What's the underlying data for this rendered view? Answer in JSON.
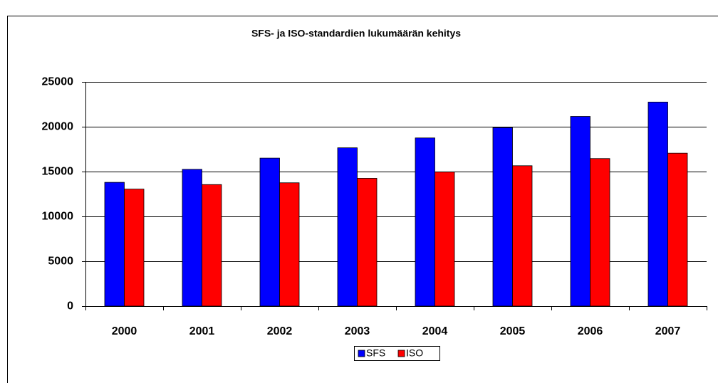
{
  "chart_data": {
    "type": "bar",
    "title": "SFS- ja ISO-standardien lukumäärän kehitys",
    "categories": [
      "2000",
      "2001",
      "2002",
      "2003",
      "2004",
      "2005",
      "2006",
      "2007"
    ],
    "series": [
      {
        "name": "SFS",
        "color": "#0000ff",
        "values": [
          13800,
          15250,
          16500,
          17650,
          18750,
          19900,
          21150,
          22750
        ]
      },
      {
        "name": "ISO",
        "color": "#ff0000",
        "values": [
          13050,
          13550,
          13750,
          14250,
          14950,
          15650,
          16450,
          17050
        ]
      }
    ],
    "ylim": [
      0,
      25000
    ],
    "yticks": [
      0,
      5000,
      10000,
      15000,
      20000,
      25000
    ],
    "grid": true,
    "legend": "bottom"
  }
}
